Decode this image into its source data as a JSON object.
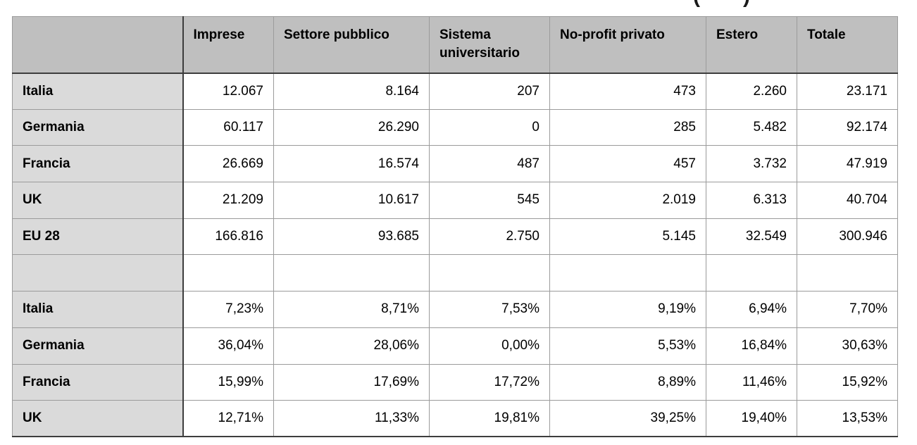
{
  "cropped_title": {
    "open_paren": "(",
    "close_paren": ")"
  },
  "table": {
    "headers": [
      "",
      "Imprese",
      "Settore pubblico",
      "Sistema universitario",
      "No-profit privato",
      "Estero",
      "Totale"
    ],
    "rows": [
      {
        "type": "counts",
        "label": "Italia",
        "values": [
          "12.067",
          "8.164",
          "207",
          "473",
          "2.260",
          "23.171"
        ]
      },
      {
        "type": "counts",
        "label": "Germania",
        "values": [
          "60.117",
          "26.290",
          "0",
          "285",
          "5.482",
          "92.174"
        ]
      },
      {
        "type": "counts",
        "label": "Francia",
        "values": [
          "26.669",
          "16.574",
          "487",
          "457",
          "3.732",
          "47.919"
        ]
      },
      {
        "type": "counts",
        "label": "UK",
        "values": [
          "21.209",
          "10.617",
          "545",
          "2.019",
          "6.313",
          "40.704"
        ]
      },
      {
        "type": "counts",
        "label": "EU 28",
        "values": [
          "166.816",
          "93.685",
          "2.750",
          "5.145",
          "32.549",
          "300.946"
        ]
      },
      {
        "type": "spacer",
        "label": "",
        "values": [
          "",
          "",
          "",
          "",
          "",
          ""
        ]
      },
      {
        "type": "percent",
        "label": "Italia",
        "values": [
          "7,23%",
          "8,71%",
          "7,53%",
          "9,19%",
          "6,94%",
          "7,70%"
        ]
      },
      {
        "type": "percent",
        "label": "Germania",
        "values": [
          "36,04%",
          "28,06%",
          "0,00%",
          "5,53%",
          "16,84%",
          "30,63%"
        ]
      },
      {
        "type": "percent",
        "label": "Francia",
        "values": [
          "15,99%",
          "17,69%",
          "17,72%",
          "8,89%",
          "11,46%",
          "15,92%"
        ]
      },
      {
        "type": "percent",
        "label": "UK",
        "values": [
          "12,71%",
          "11,33%",
          "19,81%",
          "39,25%",
          "19,40%",
          "13,53%"
        ]
      }
    ]
  },
  "colors": {
    "header_bg": "#bfbfbf",
    "label_bg": "#dadada",
    "cell_bg": "#ffffff",
    "border": "#9b9b9b",
    "strong_border": "#3d3d3d",
    "text": "#000000"
  }
}
